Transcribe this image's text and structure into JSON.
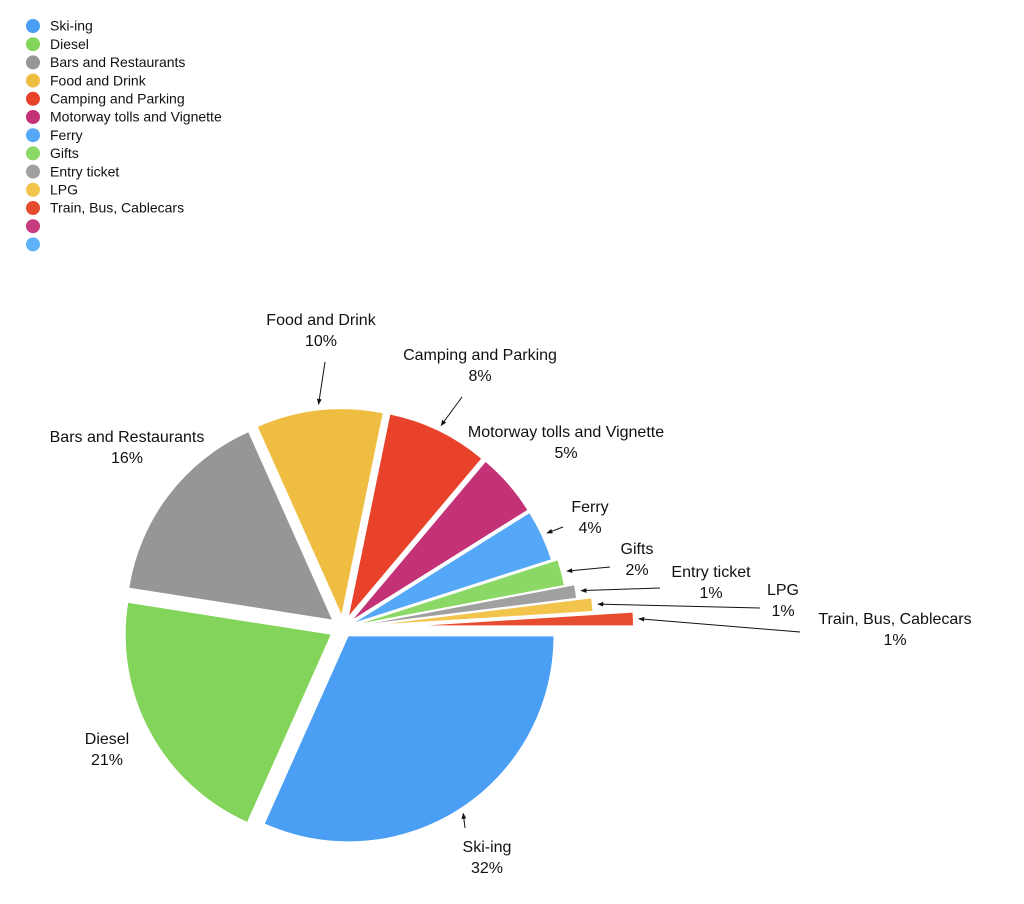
{
  "chart_data": {
    "type": "pie",
    "categories": [
      "Ski-ing",
      "Diesel",
      "Bars and Restaurants",
      "Food and Drink",
      "Camping and Parking",
      "Motorway tolls and Vignette",
      "Ferry",
      "Gifts",
      "Entry ticket",
      "LPG",
      "Train, Bus, Cablecars",
      null,
      null
    ],
    "values": [
      32,
      21,
      16,
      10,
      8,
      5,
      4,
      2,
      1,
      1,
      1,
      null,
      null
    ],
    "value_labels": [
      "32%",
      "21%",
      "16%",
      "10%",
      "8%",
      "5%",
      "4%",
      "2%",
      "1%",
      "1%",
      "1%",
      null,
      null
    ],
    "colors": [
      "#4a9ff5",
      "#83d45a",
      "#969696",
      "#efbd42",
      "#e8432a",
      "#c33176",
      "#54a8f7",
      "#8cd866",
      "#a0a0a0",
      "#f3c44c",
      "#e64d2f",
      "#c83a7f",
      "#5eb3f8"
    ],
    "legend": "top-left"
  }
}
